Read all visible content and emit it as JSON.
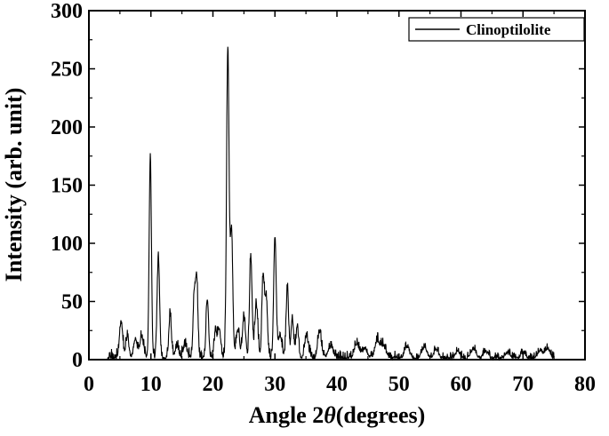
{
  "chart_data": {
    "type": "line",
    "title": "",
    "xlabel_prefix": "Angle 2",
    "xlabel_symbol": "θ",
    "xlabel_suffix": "(degrees)",
    "ylabel": "Intensity (arb. unit)",
    "xlim": [
      0,
      80
    ],
    "ylim": [
      0,
      300
    ],
    "xticks": [
      0,
      10,
      20,
      30,
      40,
      50,
      60,
      70,
      80
    ],
    "yticks": [
      0,
      50,
      100,
      150,
      200,
      250,
      300
    ],
    "xtick_labels": [
      "0",
      "10",
      "20",
      "30",
      "40",
      "50",
      "60",
      "70",
      "80"
    ],
    "ytick_labels": [
      "0",
      "50",
      "100",
      "150",
      "200",
      "250",
      "300"
    ],
    "grid": false,
    "legend_position": "top-right",
    "series": [
      {
        "name": "Clinoptilolite",
        "color": "#000000",
        "peaks": [
          [
            5.2,
            32,
            0.25
          ],
          [
            6.2,
            18,
            0.25
          ],
          [
            7.5,
            15,
            0.3
          ],
          [
            8.5,
            18,
            0.3
          ],
          [
            9.9,
            174,
            0.18
          ],
          [
            11.2,
            87,
            0.2
          ],
          [
            13.1,
            38,
            0.2
          ],
          [
            14.2,
            10,
            0.3
          ],
          [
            15.5,
            10,
            0.3
          ],
          [
            17.0,
            55,
            0.2
          ],
          [
            17.4,
            63,
            0.18
          ],
          [
            19.1,
            50,
            0.2
          ],
          [
            20.4,
            22,
            0.2
          ],
          [
            21.0,
            25,
            0.25
          ],
          [
            22.4,
            266,
            0.2
          ],
          [
            23.0,
            110,
            0.2
          ],
          [
            24.0,
            25,
            0.25
          ],
          [
            25.0,
            35,
            0.25
          ],
          [
            26.1,
            88,
            0.2
          ],
          [
            27.0,
            45,
            0.25
          ],
          [
            28.1,
            70,
            0.2
          ],
          [
            28.6,
            50,
            0.2
          ],
          [
            30.0,
            104,
            0.2
          ],
          [
            30.8,
            20,
            0.3
          ],
          [
            32.0,
            59,
            0.2
          ],
          [
            32.8,
            35,
            0.2
          ],
          [
            33.6,
            28,
            0.2
          ],
          [
            35.1,
            18,
            0.3
          ],
          [
            37.2,
            22,
            0.3
          ],
          [
            39.0,
            10,
            0.4
          ],
          [
            43.2,
            12,
            0.4
          ],
          [
            44.5,
            8,
            0.4
          ],
          [
            46.5,
            15,
            0.4
          ],
          [
            47.5,
            10,
            0.4
          ],
          [
            51.3,
            10,
            0.4
          ],
          [
            54.1,
            10,
            0.4
          ],
          [
            56.0,
            7,
            0.4
          ],
          [
            59.5,
            6,
            0.4
          ],
          [
            62.0,
            8,
            0.4
          ],
          [
            64.0,
            6,
            0.4
          ],
          [
            67.5,
            5,
            0.4
          ],
          [
            70.0,
            5,
            0.4
          ],
          [
            72.8,
            7,
            0.4
          ],
          [
            74.0,
            8,
            0.4
          ]
        ],
        "x_start": 3,
        "x_end": 75
      }
    ]
  }
}
